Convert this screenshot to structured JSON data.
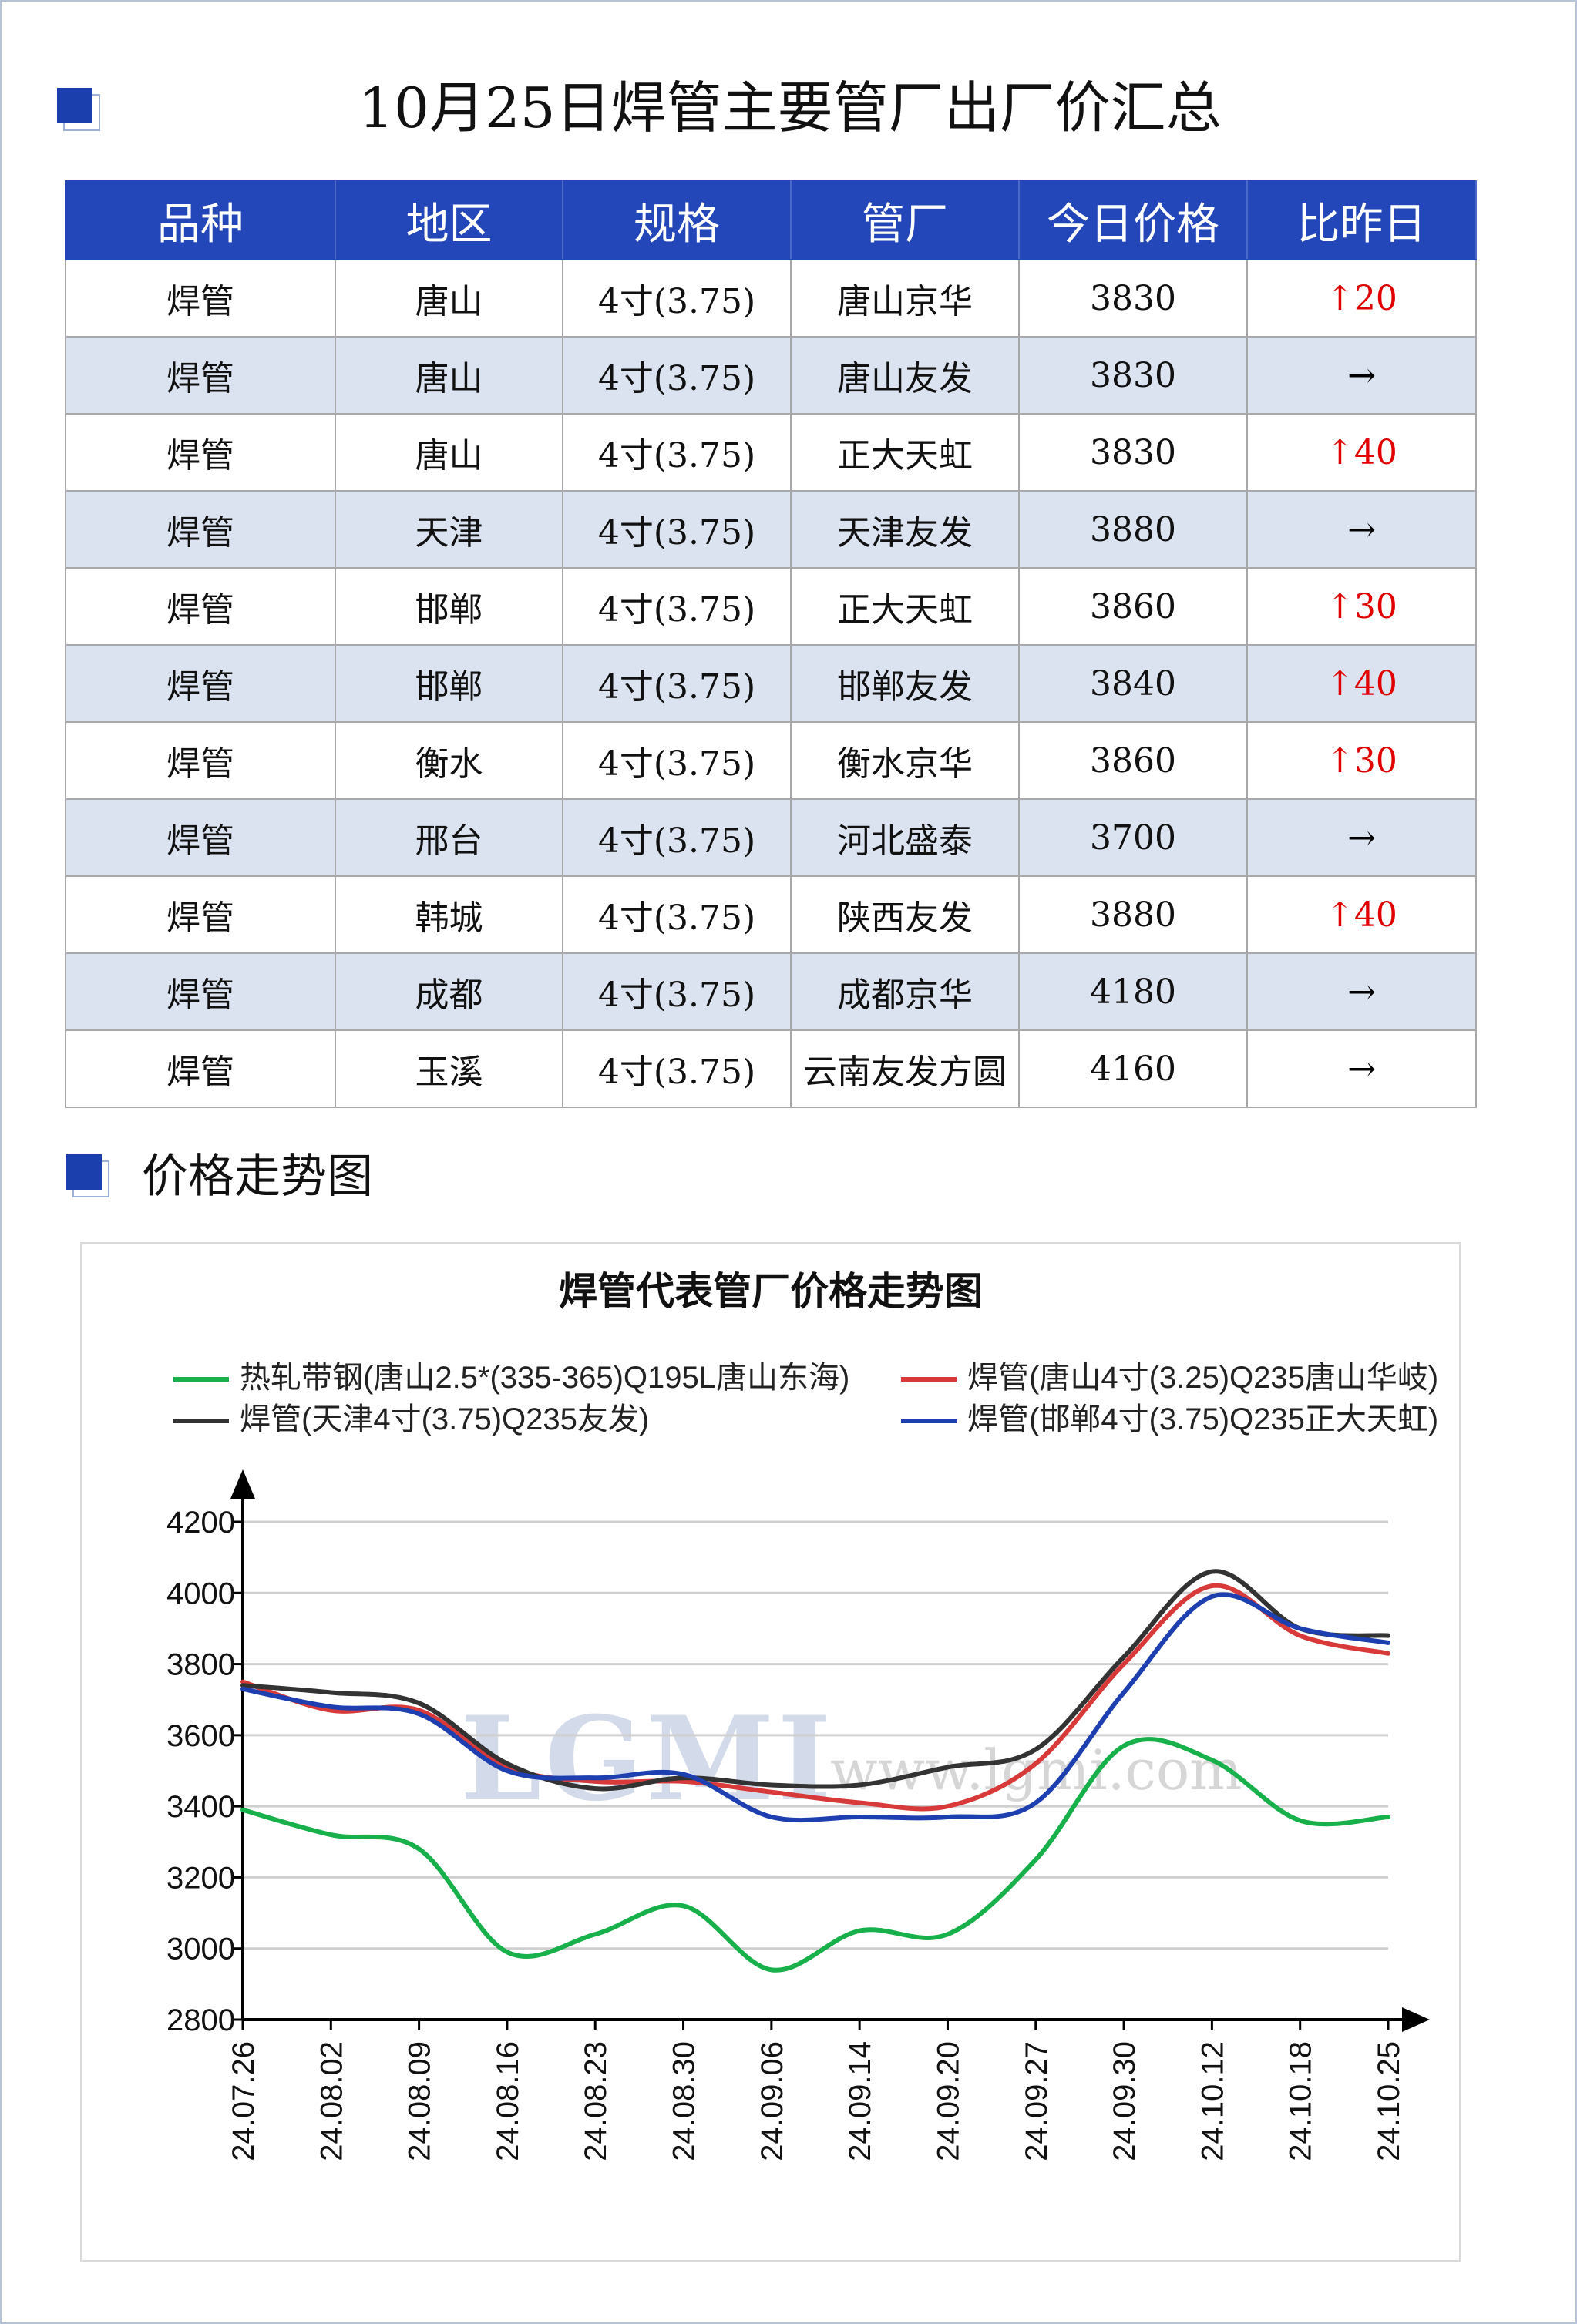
{
  "header": {
    "title": "10月25日焊管主要管厂出厂价汇总"
  },
  "table": {
    "columns": [
      "品种",
      "地区",
      "规格",
      "管厂",
      "今日价格",
      "比昨日"
    ],
    "rows": [
      {
        "variety": "焊管",
        "region": "唐山",
        "spec": "4寸(3.75)",
        "mill": "唐山京华",
        "price": "3830",
        "change": "↑20",
        "trend": "up"
      },
      {
        "variety": "焊管",
        "region": "唐山",
        "spec": "4寸(3.75)",
        "mill": "唐山友发",
        "price": "3830",
        "change": "→",
        "trend": "flat"
      },
      {
        "variety": "焊管",
        "region": "唐山",
        "spec": "4寸(3.75)",
        "mill": "正大天虹",
        "price": "3830",
        "change": "↑40",
        "trend": "up"
      },
      {
        "variety": "焊管",
        "region": "天津",
        "spec": "4寸(3.75)",
        "mill": "天津友发",
        "price": "3880",
        "change": "→",
        "trend": "flat"
      },
      {
        "variety": "焊管",
        "region": "邯郸",
        "spec": "4寸(3.75)",
        "mill": "正大天虹",
        "price": "3860",
        "change": "↑30",
        "trend": "up"
      },
      {
        "variety": "焊管",
        "region": "邯郸",
        "spec": "4寸(3.75)",
        "mill": "邯郸友发",
        "price": "3840",
        "change": "↑40",
        "trend": "up"
      },
      {
        "variety": "焊管",
        "region": "衡水",
        "spec": "4寸(3.75)",
        "mill": "衡水京华",
        "price": "3860",
        "change": "↑30",
        "trend": "up"
      },
      {
        "variety": "焊管",
        "region": "邢台",
        "spec": "4寸(3.75)",
        "mill": "河北盛泰",
        "price": "3700",
        "change": "→",
        "trend": "flat"
      },
      {
        "variety": "焊管",
        "region": "韩城",
        "spec": "4寸(3.75)",
        "mill": "陕西友发",
        "price": "3880",
        "change": "↑40",
        "trend": "up"
      },
      {
        "variety": "焊管",
        "region": "成都",
        "spec": "4寸(3.75)",
        "mill": "成都京华",
        "price": "4180",
        "change": "→",
        "trend": "flat"
      },
      {
        "variety": "焊管",
        "region": "玉溪",
        "spec": "4寸(3.75)",
        "mill": "云南友发方圆",
        "price": "4160",
        "change": "→",
        "trend": "flat"
      }
    ],
    "colors": {
      "header_bg": "#2347b8",
      "alt_row_bg": "#dbe3f1",
      "up": "#e00000"
    }
  },
  "section": {
    "title": "价格走势图"
  },
  "watermark": {
    "logo": "LGMI",
    "url": "www.lgmi.com"
  },
  "chart_data": {
    "type": "line",
    "title": "焊管代表管厂价格走势图",
    "x": [
      "24.07.26",
      "24.08.02",
      "24.08.09",
      "24.08.16",
      "24.08.23",
      "24.08.30",
      "24.09.06",
      "24.09.14",
      "24.09.20",
      "24.09.27",
      "24.09.30",
      "24.10.12",
      "24.10.18",
      "24.10.25"
    ],
    "ylim": [
      2800,
      4200
    ],
    "yticks": [
      2800,
      3000,
      3200,
      3400,
      3600,
      3800,
      4000,
      4200
    ],
    "grid": true,
    "legend_position": "top",
    "series": [
      {
        "name": "热轧带钢(唐山2.5*(335-365)Q195L唐山东海)",
        "color": "#18b04a",
        "values": [
          3390,
          3320,
          3280,
          2990,
          3040,
          3120,
          2940,
          3050,
          3040,
          3250,
          3570,
          3530,
          3360,
          3370
        ]
      },
      {
        "name": "焊管(唐山4寸(3.25)Q235唐山华岐)",
        "color": "#d83a3a",
        "values": [
          3750,
          3670,
          3670,
          3510,
          3470,
          3470,
          3440,
          3410,
          3400,
          3520,
          3800,
          4020,
          3880,
          3830
        ]
      },
      {
        "name": "焊管(天津4寸(3.75)Q235友发)",
        "color": "#333333",
        "values": [
          3740,
          3720,
          3690,
          3520,
          3450,
          3480,
          3460,
          3460,
          3510,
          3560,
          3820,
          4060,
          3900,
          3880
        ]
      },
      {
        "name": "焊管(邯郸4寸(3.75)Q235正大天虹)",
        "color": "#1e3fb0",
        "values": [
          3730,
          3680,
          3660,
          3500,
          3480,
          3490,
          3370,
          3370,
          3370,
          3410,
          3720,
          3990,
          3900,
          3860
        ]
      }
    ]
  }
}
